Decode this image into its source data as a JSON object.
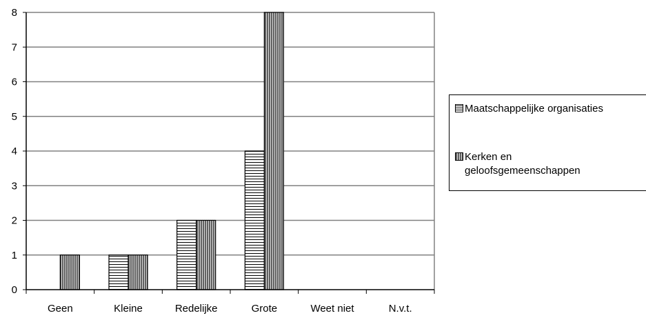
{
  "chart_data": {
    "type": "bar",
    "categories": [
      "Geen",
      "Kleine",
      "Redelijke",
      "Grote",
      "Weet niet",
      "N.v.t."
    ],
    "series": [
      {
        "name": "Maatschappelijke organisaties",
        "values": [
          0,
          1,
          2,
          4,
          0,
          0
        ],
        "pattern": "horizontal-stripes",
        "color": "#ffffff"
      },
      {
        "name": "Kerken en geloofsgemeenschappen",
        "values": [
          1,
          1,
          2,
          8,
          0,
          0
        ],
        "pattern": "vertical-stripes",
        "color": "#808080"
      }
    ],
    "yticks": [
      "0",
      "1",
      "2",
      "3",
      "4",
      "5",
      "6",
      "7",
      "8"
    ],
    "ylim": [
      0,
      8
    ],
    "grid": true,
    "legend_position": "right",
    "title": "",
    "xlabel": "",
    "ylabel": ""
  }
}
